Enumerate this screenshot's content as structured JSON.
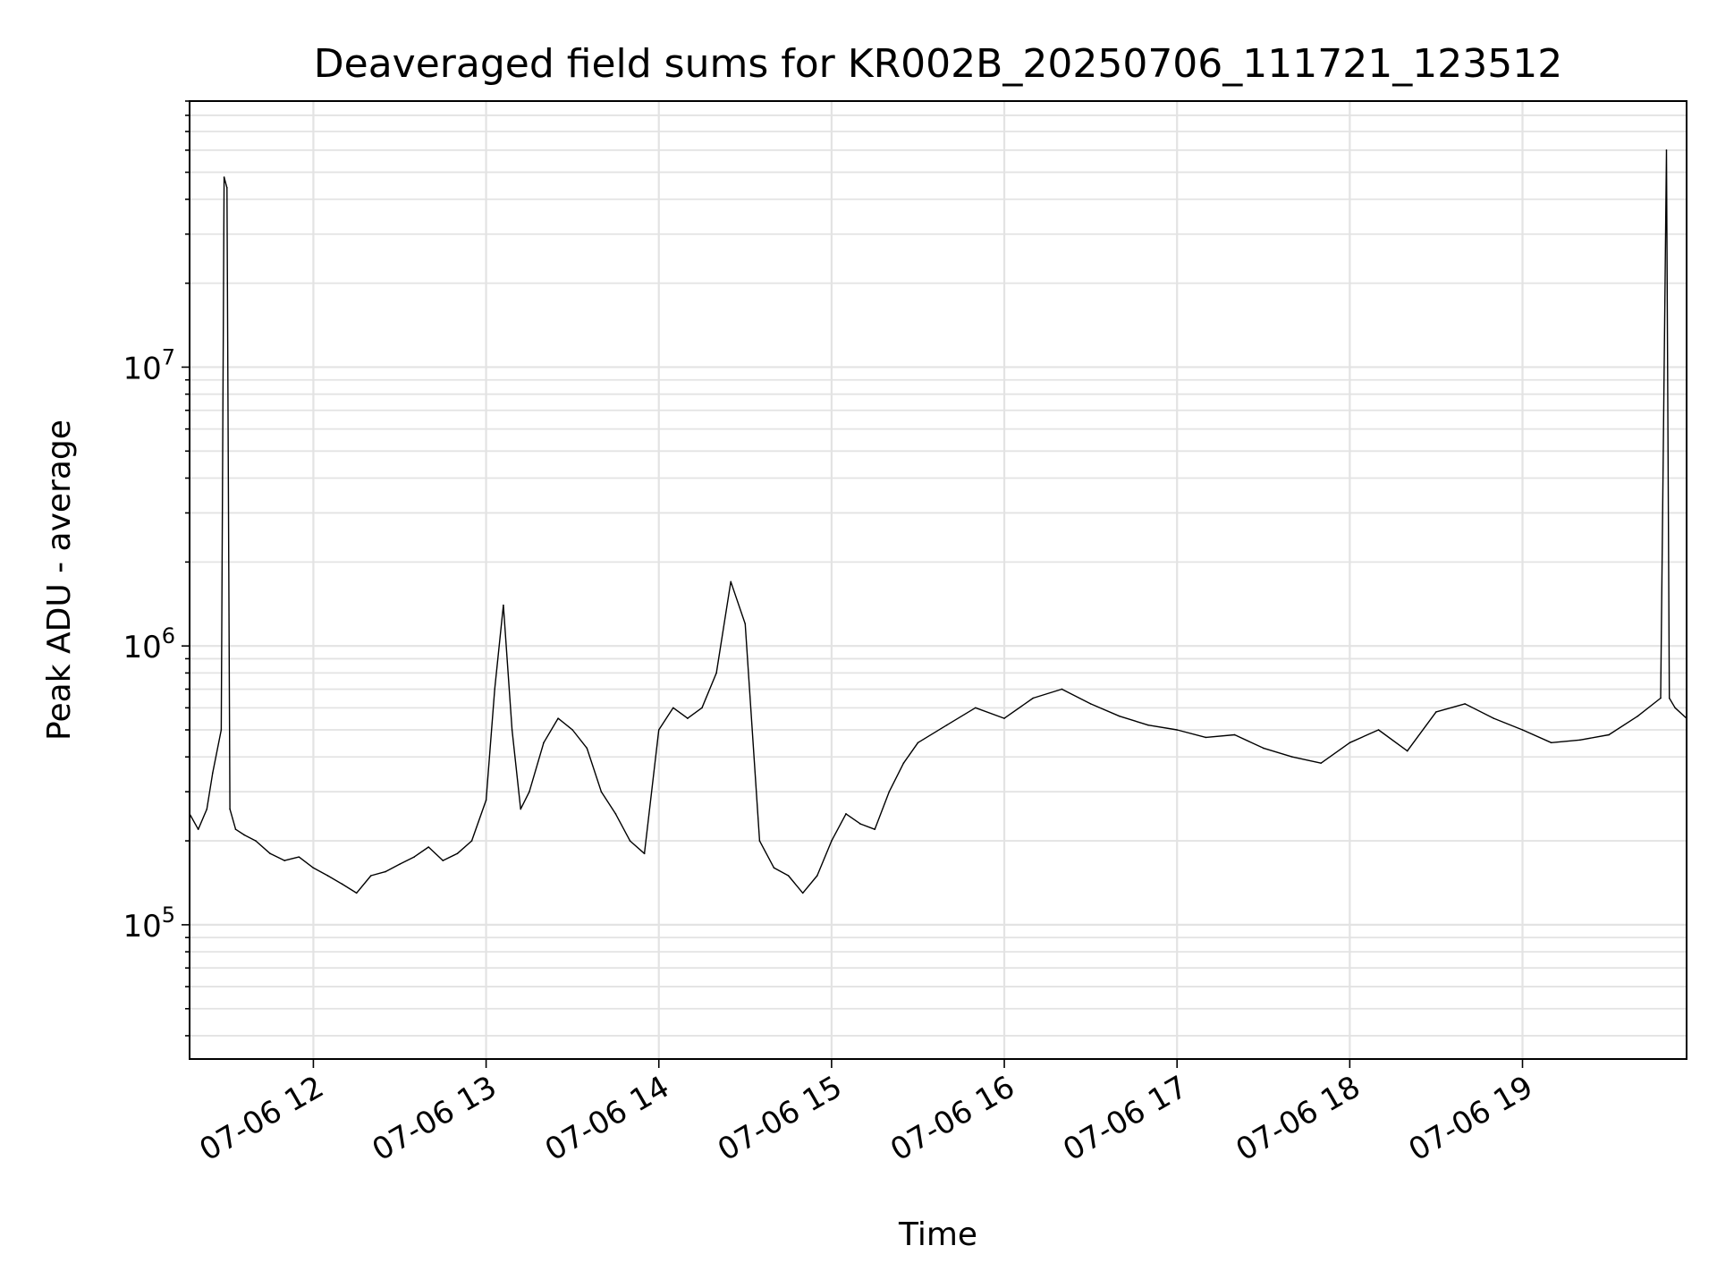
{
  "chart_data": {
    "type": "line",
    "title": "Deaveraged field sums for KR002B_20250706_111721_123512",
    "xlabel": "Time",
    "ylabel": "Peak ADU - average",
    "yscale": "log",
    "xlim": [
      "07-06 11:17",
      "07-06 19:57"
    ],
    "ylim": [
      33000,
      90000000
    ],
    "grid": "both (major and minor)",
    "line_color": "#000000",
    "x_ticks": [
      "07-06 12",
      "07-06 13",
      "07-06 14",
      "07-06 15",
      "07-06 16",
      "07-06 17",
      "07-06 18",
      "07-06 19"
    ],
    "y_ticks": [
      {
        "base": "10",
        "exp": "5",
        "value": 100000
      },
      {
        "base": "10",
        "exp": "6",
        "value": 1000000
      },
      {
        "base": "10",
        "exp": "7",
        "value": 10000000
      }
    ],
    "series": [
      {
        "x": [
          "07-06 11:17",
          "07-06 11:20",
          "07-06 11:23",
          "07-06 11:25",
          "07-06 11:28",
          "07-06 11:29",
          "07-06 11:30",
          "07-06 11:31",
          "07-06 11:33",
          "07-06 11:36",
          "07-06 11:40",
          "07-06 11:45",
          "07-06 11:50",
          "07-06 11:55",
          "07-06 12:00",
          "07-06 12:05",
          "07-06 12:10",
          "07-06 12:15",
          "07-06 12:20",
          "07-06 12:25",
          "07-06 12:30",
          "07-06 12:35",
          "07-06 12:40",
          "07-06 12:45",
          "07-06 12:50",
          "07-06 12:55",
          "07-06 13:00",
          "07-06 13:03",
          "07-06 13:06",
          "07-06 13:09",
          "07-06 13:12",
          "07-06 13:15",
          "07-06 13:20",
          "07-06 13:25",
          "07-06 13:30",
          "07-06 13:35",
          "07-06 13:40",
          "07-06 13:45",
          "07-06 13:50",
          "07-06 13:55",
          "07-06 14:00",
          "07-06 14:05",
          "07-06 14:10",
          "07-06 14:15",
          "07-06 14:20",
          "07-06 14:25",
          "07-06 14:30",
          "07-06 14:35",
          "07-06 14:40",
          "07-06 14:45",
          "07-06 14:50",
          "07-06 14:55",
          "07-06 15:00",
          "07-06 15:05",
          "07-06 15:10",
          "07-06 15:15",
          "07-06 15:20",
          "07-06 15:25",
          "07-06 15:30",
          "07-06 15:40",
          "07-06 15:50",
          "07-06 16:00",
          "07-06 16:10",
          "07-06 16:20",
          "07-06 16:30",
          "07-06 16:40",
          "07-06 16:50",
          "07-06 17:00",
          "07-06 17:10",
          "07-06 17:20",
          "07-06 17:30",
          "07-06 17:40",
          "07-06 17:50",
          "07-06 18:00",
          "07-06 18:10",
          "07-06 18:20",
          "07-06 18:30",
          "07-06 18:40",
          "07-06 18:50",
          "07-06 19:00",
          "07-06 19:10",
          "07-06 19:20",
          "07-06 19:30",
          "07-06 19:40",
          "07-06 19:48",
          "07-06 19:50",
          "07-06 19:51",
          "07-06 19:53",
          "07-06 19:57"
        ],
        "y": [
          250000,
          220000,
          260000,
          350000,
          500000,
          48000000,
          44000000,
          260000,
          220000,
          210000,
          200000,
          180000,
          170000,
          175000,
          160000,
          150000,
          140000,
          130000,
          150000,
          155000,
          165000,
          175000,
          190000,
          170000,
          180000,
          200000,
          280000,
          700000,
          1400000,
          500000,
          260000,
          300000,
          450000,
          550000,
          500000,
          430000,
          300000,
          250000,
          200000,
          180000,
          500000,
          600000,
          550000,
          600000,
          800000,
          1700000,
          1200000,
          200000,
          160000,
          150000,
          130000,
          150000,
          200000,
          250000,
          230000,
          220000,
          300000,
          380000,
          450000,
          520000,
          600000,
          550000,
          650000,
          700000,
          620000,
          560000,
          520000,
          500000,
          470000,
          480000,
          430000,
          400000,
          380000,
          450000,
          500000,
          420000,
          580000,
          620000,
          550000,
          500000,
          450000,
          460000,
          480000,
          560000,
          650000,
          60000000,
          650000,
          600000,
          550000
        ]
      }
    ]
  }
}
